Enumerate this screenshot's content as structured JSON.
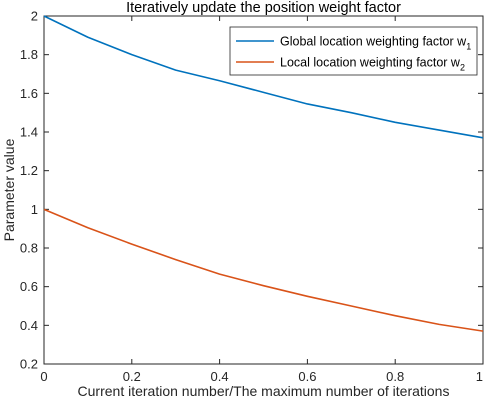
{
  "chart_data": {
    "type": "line",
    "title": "Iteratively update the position weight factor",
    "xlabel": "Current iteration number/The maximum number of iterations",
    "ylabel": "Parameter value",
    "xlim": [
      0,
      1
    ],
    "ylim": [
      0.2,
      2
    ],
    "xticks": [
      0,
      0.2,
      0.4,
      0.6,
      0.8,
      1
    ],
    "xtick_labels": [
      "0",
      "0.2",
      "0.4",
      "0.6",
      "0.8",
      "1"
    ],
    "yticks": [
      0.2,
      0.4,
      0.6,
      0.8,
      1,
      1.2,
      1.4,
      1.6,
      1.8,
      2
    ],
    "ytick_labels": [
      "0.2",
      "0.4",
      "0.6",
      "0.8",
      "1",
      "1.2",
      "1.4",
      "1.6",
      "1.8",
      "2"
    ],
    "grid": false,
    "legend_position": "top-right",
    "x": [
      0,
      0.1,
      0.2,
      0.3,
      0.4,
      0.5,
      0.6,
      0.7,
      0.8,
      0.9,
      1
    ],
    "series": [
      {
        "name": "Global location weighting factor w",
        "name_subscript": "1",
        "color": "#0072BD",
        "values": [
          2.0,
          1.89,
          1.8,
          1.72,
          1.665,
          1.605,
          1.545,
          1.5,
          1.45,
          1.41,
          1.37
        ]
      },
      {
        "name": "Local location weighting factor w",
        "name_subscript": "2",
        "color": "#D95319",
        "values": [
          1.0,
          0.905,
          0.82,
          0.74,
          0.665,
          0.605,
          0.55,
          0.5,
          0.45,
          0.405,
          0.37
        ]
      }
    ]
  }
}
